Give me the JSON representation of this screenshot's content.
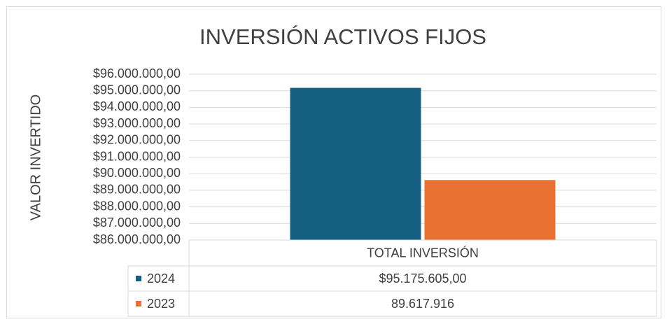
{
  "chart_data": {
    "type": "bar",
    "title": "INVERSIÓN ACTIVOS FIJOS",
    "y_label": "VALOR INVERTIDO",
    "categories": [
      "TOTAL INVERSIÓN"
    ],
    "series": [
      {
        "name": "2024",
        "color": "#156082",
        "values": [
          95175605
        ],
        "value_labels": [
          "$95.175.605,00"
        ]
      },
      {
        "name": "2023",
        "color": "#e97132",
        "values": [
          89617916
        ],
        "value_labels": [
          "89.617.916"
        ]
      }
    ],
    "ylim": [
      86000000,
      96000000
    ],
    "yticks": [
      {
        "value": 86000000,
        "label": "$86.000.000,00"
      },
      {
        "value": 87000000,
        "label": "$87.000.000,00"
      },
      {
        "value": 88000000,
        "label": "$88.000.000,00"
      },
      {
        "value": 89000000,
        "label": "$89.000.000,00"
      },
      {
        "value": 90000000,
        "label": "$90.000.000,00"
      },
      {
        "value": 91000000,
        "label": "$91.000.000,00"
      },
      {
        "value": 92000000,
        "label": "$92.000.000,00"
      },
      {
        "value": 93000000,
        "label": "$93.000.000,00"
      },
      {
        "value": 94000000,
        "label": "$94.000.000,00"
      },
      {
        "value": 95000000,
        "label": "$95.000.000,00"
      },
      {
        "value": 96000000,
        "label": "$96.000.000,00"
      }
    ],
    "grid": true,
    "data_table": true
  }
}
